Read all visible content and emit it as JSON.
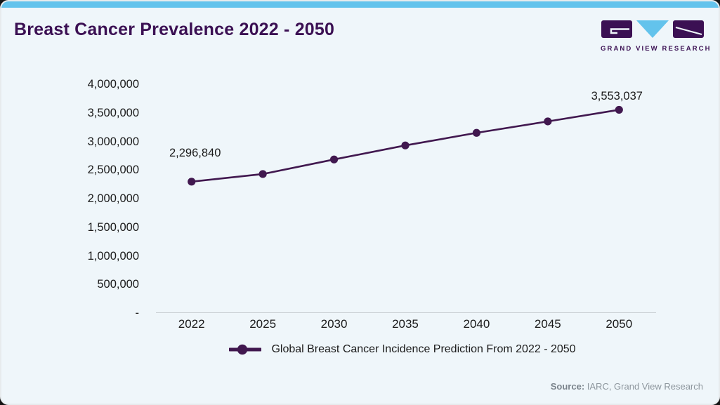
{
  "header": {
    "title": "Breast Cancer Prevalence 2022 - 2050"
  },
  "logo": {
    "text": "GRAND VIEW RESEARCH",
    "purple": "#3b1053",
    "blue": "#63c3ec"
  },
  "chart_data": {
    "type": "line",
    "title": "Breast Cancer Prevalence 2022 - 2050",
    "categories": [
      "2022",
      "2025",
      "2030",
      "2035",
      "2040",
      "2045",
      "2050"
    ],
    "series": [
      {
        "name": "Global Breast Cancer Incidence Prediction From 2022 - 2050",
        "values": [
          2296840,
          2430000,
          2685000,
          2930000,
          3150000,
          3350000,
          3553037
        ]
      }
    ],
    "point_labels": [
      {
        "index": 0,
        "text": "2,296,840"
      },
      {
        "index": 6,
        "text": "3,553,037"
      }
    ],
    "y_ticks": [
      "4,000,000",
      "3,500,000",
      "3,000,000",
      "2,500,000",
      "2,000,000",
      "1,500,000",
      "1,000,000",
      "500,000",
      "-"
    ],
    "ylim": [
      0,
      4000000
    ],
    "xlabel": "",
    "ylabel": "",
    "grid": false,
    "legend_position": "bottom",
    "line_color": "#41184f"
  },
  "legend": {
    "label": "Global Breast Cancer Incidence Prediction From 2022 - 2050"
  },
  "footer": {
    "source_label": "Source:",
    "source_text": " IARC, Grand View Research"
  }
}
